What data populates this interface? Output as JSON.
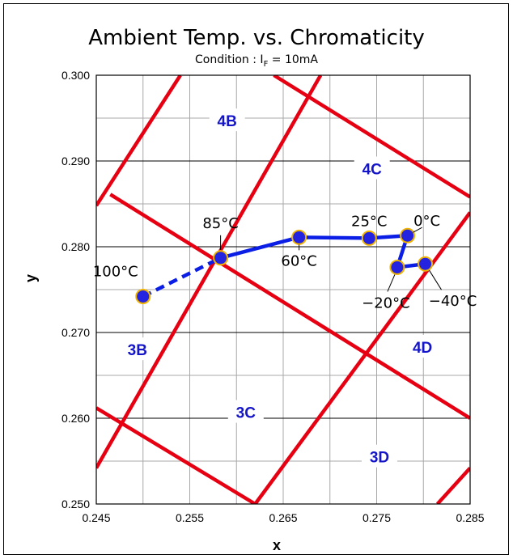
{
  "chart_data": {
    "type": "scatter",
    "title": "Ambient Temp. vs. Chromaticity",
    "subtitle": "Condition : I",
    "subtitle_sub": "F",
    "subtitle_tail": " = 10mA",
    "xlabel": "x",
    "ylabel": "y",
    "xlim": [
      0.245,
      0.285
    ],
    "ylim": [
      0.25,
      0.3
    ],
    "x_ticks": [
      "0.245",
      "0.255",
      "0.265",
      "0.275",
      "0.285"
    ],
    "y_ticks": [
      "0.250",
      "0.260",
      "0.270",
      "0.280",
      "0.290",
      "0.300"
    ],
    "grid": true,
    "series": [
      {
        "points": [
          {
            "label": "100°C",
            "x": 0.25,
            "y": 0.2742
          },
          {
            "label": "85°C",
            "x": 0.2583,
            "y": 0.2787
          },
          {
            "label": "60°C",
            "x": 0.2667,
            "y": 0.2811
          },
          {
            "label": "25°C",
            "x": 0.2742,
            "y": 0.281
          },
          {
            "label": "0°C",
            "x": 0.2783,
            "y": 0.2813
          },
          {
            "label": "−20°C",
            "x": 0.2772,
            "y": 0.2776
          },
          {
            "label": "−40°C",
            "x": 0.2802,
            "y": 0.278
          }
        ],
        "line_color": "#0a1ee6",
        "marker_color": "#2424e0",
        "marker_edge": "#f0b400"
      }
    ],
    "bin_lines": [
      {
        "x1": 0.245,
        "y1": 0.2848,
        "x2": 0.254,
        "y2": 0.3
      },
      {
        "x1": 0.245,
        "y1": 0.2542,
        "x2": 0.269,
        "y2": 0.3
      },
      {
        "x1": 0.262,
        "y1": 0.25,
        "x2": 0.285,
        "y2": 0.284
      },
      {
        "x1": 0.2815,
        "y1": 0.25,
        "x2": 0.285,
        "y2": 0.2542
      },
      {
        "x1": 0.2465,
        "y1": 0.2861,
        "x2": 0.285,
        "y2": 0.26
      },
      {
        "x1": 0.245,
        "y1": 0.2612,
        "x2": 0.262,
        "y2": 0.25
      },
      {
        "x1": 0.264,
        "y1": 0.3,
        "x2": 0.285,
        "y2": 0.2858
      }
    ],
    "bin_line_color": "#e60012",
    "regions": [
      {
        "label": "4B",
        "x": 0.259,
        "y": 0.2947
      },
      {
        "label": "4C",
        "x": 0.2745,
        "y": 0.2891
      },
      {
        "label": "3B",
        "x": 0.2494,
        "y": 0.268
      },
      {
        "label": "4D",
        "x": 0.2799,
        "y": 0.2683
      },
      {
        "label": "3C",
        "x": 0.261,
        "y": 0.2607
      },
      {
        "label": "3D",
        "x": 0.2753,
        "y": 0.2555
      }
    ]
  }
}
